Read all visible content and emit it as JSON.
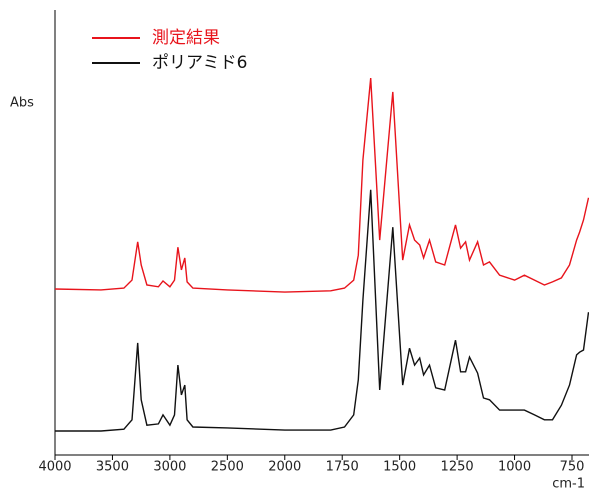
{
  "chart_data": {
    "type": "line",
    "y_label": "Abs",
    "x_label": "cm-1",
    "x": [
      4000,
      3600,
      3400,
      3330,
      3280,
      3250,
      3200,
      3100,
      3060,
      3000,
      2960,
      2930,
      2900,
      2870,
      2850,
      2800,
      2500,
      2000,
      1800,
      1740,
      1700,
      1680,
      1660,
      1626,
      1587,
      1530,
      1487,
      1457,
      1435,
      1413,
      1396,
      1370,
      1343,
      1304,
      1257,
      1235,
      1213,
      1196,
      1161,
      1135,
      1109,
      1065,
      1000,
      957,
      913,
      870,
      835,
      796,
      761,
      730,
      717,
      700,
      678
    ],
    "series": [
      {
        "name": "測定結果",
        "color": "#e8141c",
        "values": [
          0.373,
          0.371,
          0.375,
          0.393,
          0.479,
          0.427,
          0.382,
          0.378,
          0.391,
          0.378,
          0.393,
          0.467,
          0.416,
          0.443,
          0.389,
          0.375,
          0.371,
          0.366,
          0.369,
          0.375,
          0.393,
          0.449,
          0.663,
          0.847,
          0.483,
          0.816,
          0.438,
          0.517,
          0.483,
          0.472,
          0.443,
          0.483,
          0.434,
          0.427,
          0.517,
          0.465,
          0.479,
          0.438,
          0.479,
          0.427,
          0.434,
          0.404,
          0.393,
          0.404,
          0.393,
          0.382,
          0.389,
          0.398,
          0.427,
          0.483,
          0.501,
          0.528,
          0.578
        ]
      },
      {
        "name": "ポリアミド6",
        "color": "#111111",
        "values": [
          0.054,
          0.054,
          0.058,
          0.079,
          0.252,
          0.124,
          0.067,
          0.07,
          0.09,
          0.067,
          0.09,
          0.202,
          0.135,
          0.157,
          0.079,
          0.063,
          0.061,
          0.056,
          0.056,
          0.063,
          0.09,
          0.169,
          0.348,
          0.596,
          0.146,
          0.512,
          0.157,
          0.24,
          0.202,
          0.218,
          0.18,
          0.202,
          0.151,
          0.146,
          0.258,
          0.187,
          0.187,
          0.22,
          0.184,
          0.128,
          0.124,
          0.101,
          0.101,
          0.101,
          0.09,
          0.079,
          0.079,
          0.112,
          0.157,
          0.225,
          0.231,
          0.236,
          0.321
        ]
      }
    ],
    "xlim": [
      4000,
      676
    ],
    "xticks": [
      4000,
      3500,
      3000,
      2500,
      2000,
      1750,
      1500,
      1250,
      1000,
      750
    ],
    "ylim": [
      0,
      1
    ],
    "legend": "upper left",
    "grid": false
  }
}
